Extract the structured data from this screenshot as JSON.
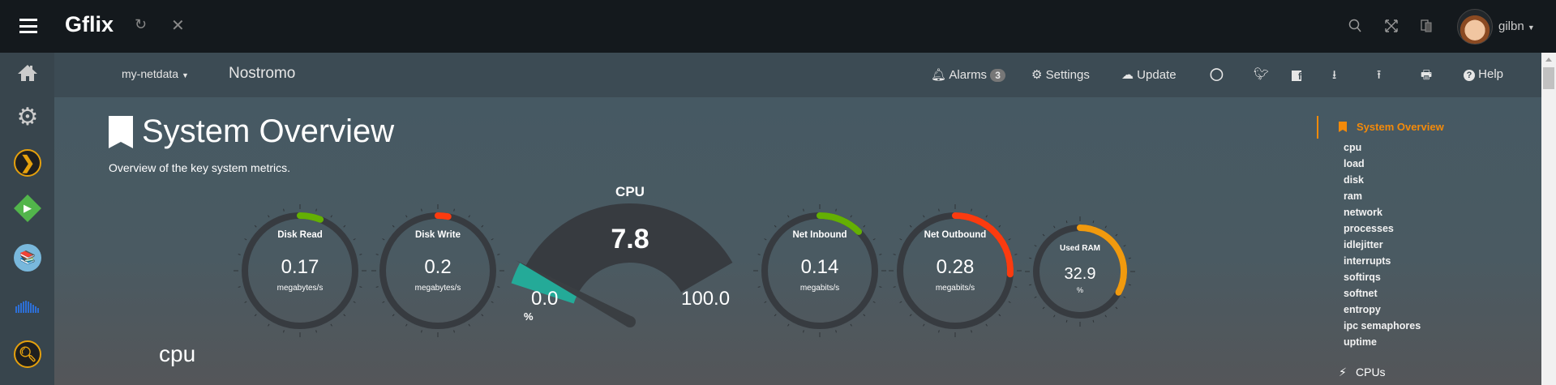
{
  "app": {
    "title": "Gflix",
    "user": "gilbn"
  },
  "topbar": {
    "icons": [
      "menu-icon",
      "refresh-icon",
      "close-icon",
      "search-icon",
      "fullscreen-icon",
      "translate-icon"
    ]
  },
  "sidebar": {
    "items": [
      "home",
      "settings",
      "plex",
      "emby",
      "calibre",
      "soundcloud",
      "search"
    ]
  },
  "navbar": {
    "brand": "my-netdata",
    "host": "Nostromo",
    "alarms_label": "Alarms",
    "alarms_count": "3",
    "settings_label": "Settings",
    "update_label": "Update",
    "help_label": "Help"
  },
  "page": {
    "title": "System Overview",
    "subtitle": "Overview of the key system metrics.",
    "section": "cpu"
  },
  "gauges": [
    {
      "title": "Disk Read",
      "value": "0.17",
      "unit": "megabytes/s",
      "fraction": 0.06,
      "color": "#64b003"
    },
    {
      "title": "Disk Write",
      "value": "0.2",
      "unit": "megabytes/s",
      "fraction": 0.03,
      "color": "#fb3b0f"
    },
    {
      "title": "Net Inbound",
      "value": "0.14",
      "unit": "megabits/s",
      "fraction": 0.125,
      "color": "#64b003"
    },
    {
      "title": "Net Outbound",
      "value": "0.28",
      "unit": "megabits/s",
      "fraction": 0.26,
      "color": "#fb3b0f"
    },
    {
      "title": "Used RAM",
      "value": "32.9",
      "unit": "%",
      "fraction": 0.329,
      "color": "#f19a0e"
    }
  ],
  "cpu_gauge": {
    "title": "CPU",
    "value": "7.8",
    "min": "0.0",
    "max": "100.0",
    "unit": "%",
    "fraction": 0.078,
    "color": "#24aa98"
  },
  "toc": {
    "active": "System Overview",
    "items": [
      "cpu",
      "load",
      "disk",
      "ram",
      "network",
      "processes",
      "idlejitter",
      "interrupts",
      "softirqs",
      "softnet",
      "entropy",
      "ipc semaphores",
      "uptime"
    ],
    "next": "CPUs",
    "accent": "#f48a0a"
  }
}
